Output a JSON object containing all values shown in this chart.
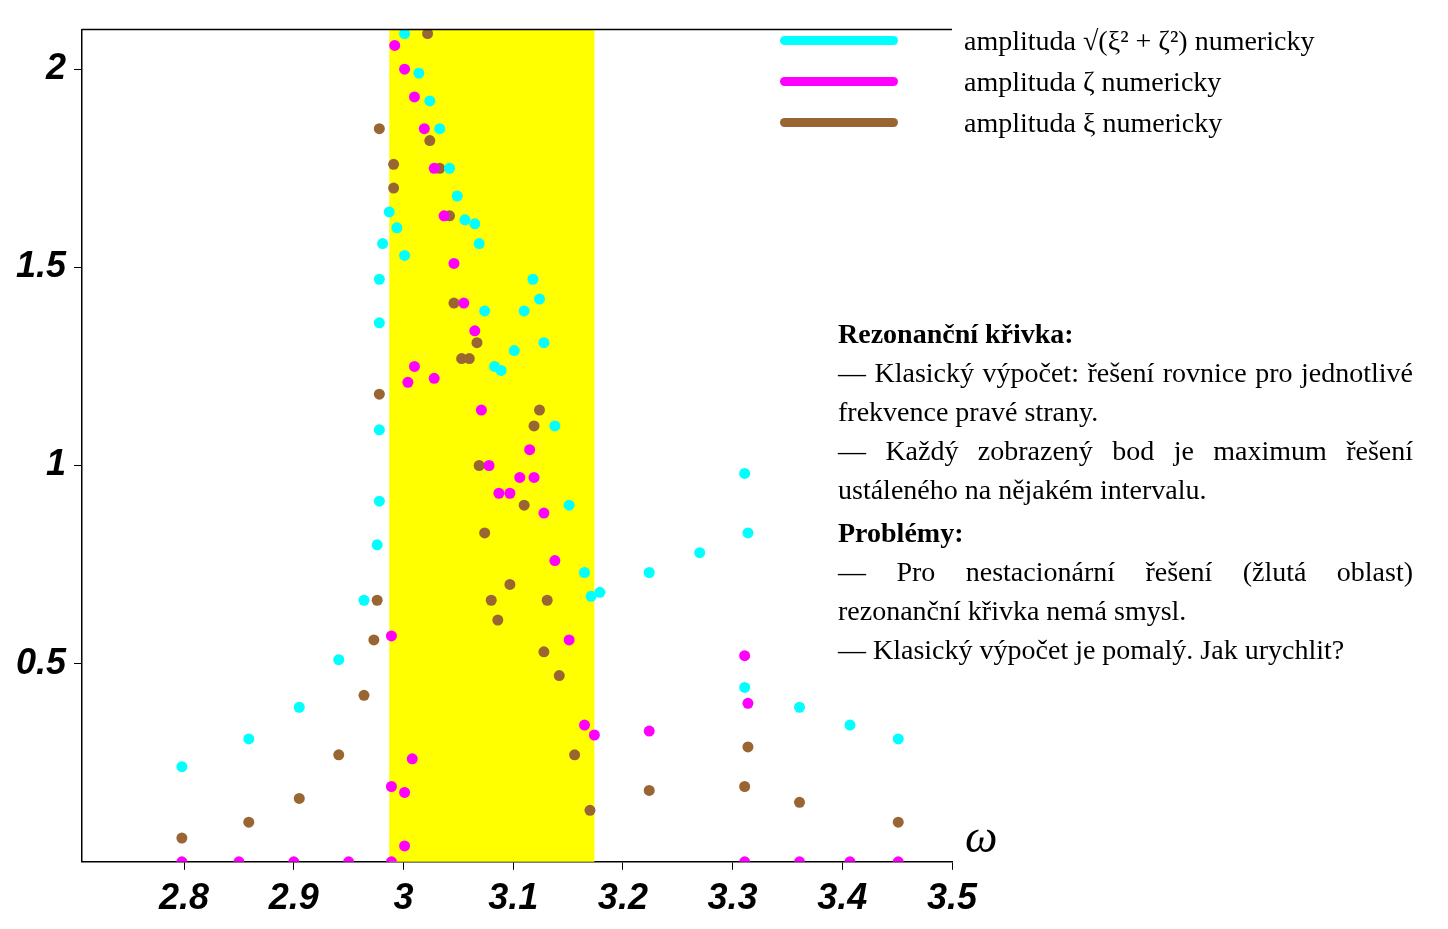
{
  "chart_data": {
    "type": "scatter",
    "xlabel": "ω",
    "xlim": [
      2.707,
      3.5
    ],
    "xticks": [
      2.8,
      2.9,
      3,
      3.1,
      3.2,
      3.3,
      3.4,
      3.5
    ],
    "ylim": [
      0,
      2.1
    ],
    "yticks": [
      0.5,
      1,
      1.5,
      2
    ],
    "grid": false,
    "legend": "top right",
    "marker": "circle",
    "bands": [
      {
        "axis": "x",
        "from": 2.987,
        "to": 3.174,
        "color": "#ffff00"
      }
    ],
    "series": [
      {
        "name": "amplituda √(ξ² + ζ²) numericky",
        "color": "#00ffff",
        "x": [
          2.798,
          2.859,
          2.905,
          2.941,
          2.964,
          2.976,
          2.978,
          2.978,
          2.978,
          2.978,
          2.981,
          2.987,
          2.994,
          3.001,
          3.001,
          3.014,
          3.024,
          3.033,
          3.042,
          3.049,
          3.056,
          3.065,
          3.069,
          3.074,
          3.083,
          3.089,
          3.101,
          3.11,
          3.118,
          3.124,
          3.128,
          3.138,
          3.151,
          3.165,
          3.171,
          3.179,
          3.224,
          3.27,
          3.314,
          3.311,
          3.311,
          3.361,
          3.407,
          3.451
        ],
        "values": [
          0.24,
          0.31,
          0.39,
          0.51,
          0.66,
          0.8,
          0.91,
          1.09,
          1.36,
          1.47,
          1.56,
          1.64,
          1.6,
          1.53,
          2.09,
          1.99,
          1.92,
          1.85,
          1.75,
          1.68,
          1.62,
          1.61,
          1.56,
          1.39,
          1.25,
          1.24,
          1.29,
          1.39,
          1.47,
          1.42,
          1.31,
          1.1,
          0.9,
          0.73,
          0.67,
          0.68,
          0.73,
          0.78,
          0.83,
          0.98,
          0.44,
          0.39,
          0.345,
          0.31
        ]
      },
      {
        "name": "amplituda ζ numericky",
        "color": "#ff00ff",
        "x": [
          2.798,
          2.85,
          2.9,
          2.95,
          2.989,
          2.989,
          2.989,
          3.001,
          3.001,
          3.008,
          3.004,
          3.01,
          3.028,
          2.992,
          3.001,
          3.01,
          3.019,
          3.028,
          3.037,
          3.046,
          3.055,
          3.065,
          3.071,
          3.078,
          3.087,
          3.097,
          3.106,
          3.115,
          3.119,
          3.128,
          3.138,
          3.151,
          3.165,
          3.174,
          3.224,
          3.314,
          3.311,
          3.311,
          3.361,
          3.407,
          3.451
        ],
        "values": [
          0,
          0,
          0,
          0,
          0,
          0.57,
          0.19,
          0.175,
          0.04,
          0.26,
          1.21,
          1.25,
          1.22,
          2.06,
          2,
          1.93,
          1.85,
          1.75,
          1.63,
          1.51,
          1.41,
          1.34,
          1.14,
          1,
          0.93,
          0.93,
          0.97,
          1.04,
          0.97,
          0.88,
          0.76,
          0.56,
          0.345,
          0.32,
          0.33,
          0.4,
          0.52,
          0,
          0,
          0,
          0
        ]
      },
      {
        "name": "amplituda ξ numericky",
        "color": "#996633",
        "x": [
          2.798,
          2.859,
          2.905,
          2.941,
          2.964,
          2.973,
          2.976,
          2.978,
          2.978,
          2.991,
          2.991,
          3.022,
          3.024,
          3.033,
          3.042,
          3.046,
          3.053,
          3.06,
          3.067,
          3.069,
          3.074,
          3.08,
          3.086,
          3.097,
          3.11,
          3.119,
          3.124,
          3.131,
          3.128,
          3.142,
          3.156,
          3.17,
          3.224,
          3.314,
          3.311,
          3.361,
          3.451
        ],
        "values": [
          0.06,
          0.1,
          0.16,
          0.27,
          0.42,
          0.56,
          0.66,
          1.18,
          1.85,
          1.76,
          1.7,
          2.09,
          1.82,
          1.75,
          1.63,
          1.41,
          1.27,
          1.27,
          1.31,
          1,
          0.83,
          0.66,
          0.61,
          0.7,
          0.9,
          1.1,
          1.14,
          0.66,
          0.53,
          0.47,
          0.27,
          0.13,
          0.18,
          0.29,
          0.19,
          0.15,
          0.1
        ]
      }
    ],
    "annotations": [
      "Rezonanční křivka:",
      "— Klasický výpočet: řešení rovnice pro jednotlivé frekvence pravé strany.",
      "— Každý zobrazený bod je maximum řešení ustáleného na nějakém intervalu.",
      "Problémy:",
      "— Pro nestacionární řešení (žlutá oblast) rezonanční křivka nemá smysl.",
      "— Klasický výpočet je pomalý. Jak urychlit?"
    ]
  }
}
